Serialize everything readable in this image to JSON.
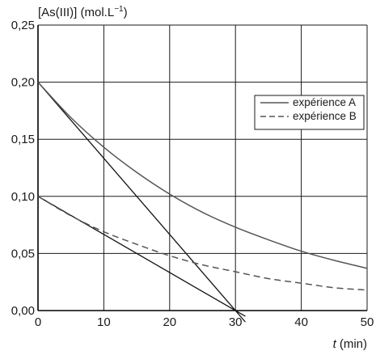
{
  "chart_data": {
    "type": "line",
    "ylabel": "[As(III)] (mol.L",
    "ylabel_sup": "−1",
    "ylabel_end": ")",
    "xlabel_var": "t",
    "xlabel_unit": "(min)",
    "xlim": [
      0,
      50
    ],
    "ylim": [
      0,
      0.25
    ],
    "x_ticks": [
      0,
      10,
      20,
      30,
      40,
      50
    ],
    "x_tick_labels": [
      "0",
      "10",
      "20",
      "30",
      "40",
      "50"
    ],
    "y_ticks": [
      0,
      0.05,
      0.1,
      0.15,
      0.2,
      0.25
    ],
    "y_tick_labels": [
      "0,00",
      "0,05",
      "0,10",
      "0,15",
      "0,20",
      "0,25"
    ],
    "grid": true,
    "legend_position": "top-right",
    "series": [
      {
        "name": "expérience A",
        "style": "solid",
        "color": "#555555",
        "x": [
          0,
          5,
          10,
          15,
          20,
          25,
          30,
          35,
          40,
          45,
          50
        ],
        "y": [
          0.2,
          0.169,
          0.143,
          0.121,
          0.102,
          0.086,
          0.073,
          0.062,
          0.052,
          0.044,
          0.037
        ]
      },
      {
        "name": "expérience B",
        "style": "dashed",
        "color": "#555555",
        "x": [
          0,
          5,
          10,
          15,
          20,
          25,
          30,
          35,
          40,
          45,
          50
        ],
        "y": [
          0.1,
          0.083,
          0.069,
          0.058,
          0.048,
          0.04,
          0.034,
          0.028,
          0.024,
          0.02,
          0.018
        ]
      }
    ],
    "tangents": [
      {
        "x": [
          0,
          31.5
        ],
        "y": [
          0.2,
          -0.01
        ]
      },
      {
        "x": [
          0,
          31.5
        ],
        "y": [
          0.1,
          -0.005
        ]
      }
    ]
  }
}
